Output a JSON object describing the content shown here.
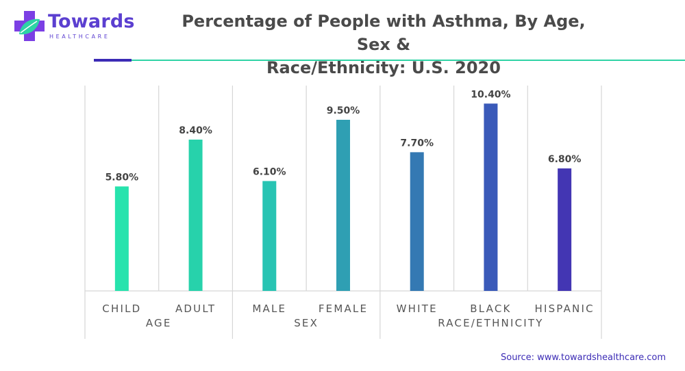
{
  "logo": {
    "name": "Towards",
    "sub": "HEALTHCARE",
    "accent_color": "#7b3fe4",
    "leaf_color": "#2ed3a5",
    "text_color": "#5b3fd0"
  },
  "title": {
    "line1": "Percentage of People with Asthma, By Age, Sex &",
    "line2": "Race/Ethnicity: U.S. 2020"
  },
  "colors": {
    "rule_left": "#3b2bb5",
    "rule_right": "#2ed3a5",
    "source": "#3b2bb5",
    "grid": "#d6d6d6",
    "label": "#555555"
  },
  "chart_data": {
    "type": "bar",
    "title": "Percentage of People with Asthma, By Age, Sex & Race/Ethnicity: U.S. 2020",
    "categories": [
      "CHILD",
      "ADULT",
      "MALE",
      "FEMALE",
      "WHITE",
      "BLACK",
      "HISPANIC"
    ],
    "values": [
      5.8,
      8.4,
      6.1,
      9.5,
      7.7,
      10.4,
      6.8
    ],
    "value_labels": [
      "5.80%",
      "8.40%",
      "6.10%",
      "9.50%",
      "7.70%",
      "10.40%",
      "6.80%"
    ],
    "bar_colors": [
      "#27e3ad",
      "#27d2ab",
      "#28c4b3",
      "#2f9fb3",
      "#3479b3",
      "#3a5ab9",
      "#4336b3"
    ],
    "groups": [
      {
        "label": "AGE",
        "span": [
          0,
          1
        ]
      },
      {
        "label": "SEX",
        "span": [
          2,
          3
        ]
      },
      {
        "label": "RACE/ETHNICITY",
        "span": [
          4,
          6
        ]
      }
    ],
    "ylim": [
      0,
      11.4
    ],
    "grid": "vertical separators",
    "legend": "none"
  },
  "source": "Source: www.towardshealthcare.com"
}
